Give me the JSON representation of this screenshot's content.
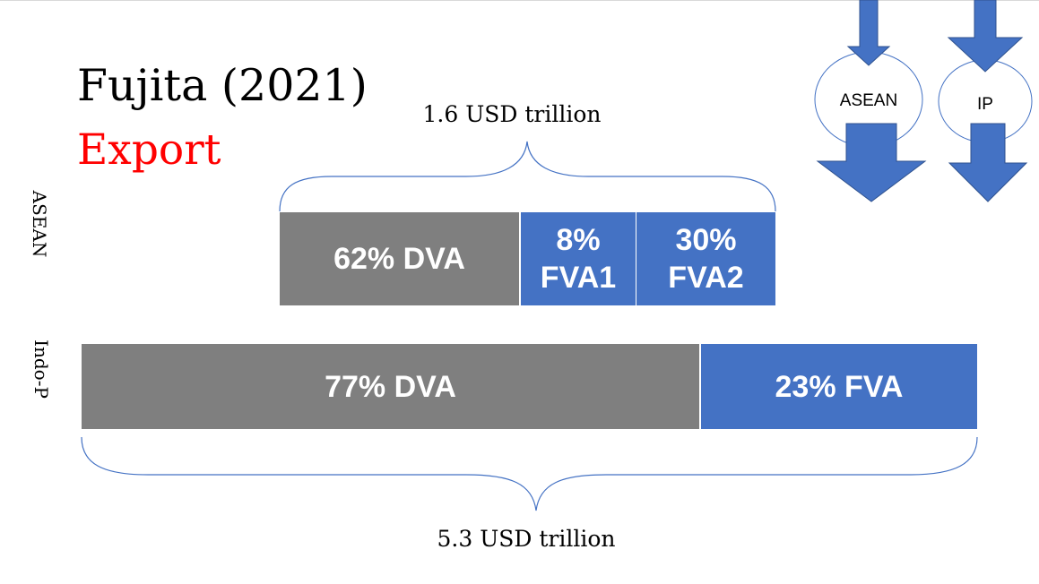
{
  "slide": {
    "title": "Fujita (2021)",
    "subtitle": "Export"
  },
  "colors": {
    "dva": "#7f7f7f",
    "fva": "#4472c4",
    "subtitle": "#ff0000",
    "brace": "#4472c4"
  },
  "asean_row": {
    "row_label": "ASEAN",
    "total_label": "1.6 USD trillion",
    "segments": [
      {
        "name": "DVA",
        "share_pct": 62,
        "line1": "62% DVA",
        "line2": ""
      },
      {
        "name": "FVA1",
        "share_pct": 8,
        "line1": "8%",
        "line2": "FVA1"
      },
      {
        "name": "FVA2",
        "share_pct": 30,
        "line1": "30%",
        "line2": "FVA2"
      }
    ]
  },
  "indop_row": {
    "row_label": "Indo-P",
    "total_label": "5.3 USD trillion",
    "segments": [
      {
        "name": "DVA",
        "share_pct": 77,
        "line1": "77% DVA"
      },
      {
        "name": "FVA",
        "share_pct": 23,
        "line1": "23% FVA"
      }
    ]
  },
  "flow_diagram": {
    "left_circle": "ASEAN",
    "right_circle": "IP",
    "arrow_icons": [
      "arrow-down-icon"
    ]
  }
}
